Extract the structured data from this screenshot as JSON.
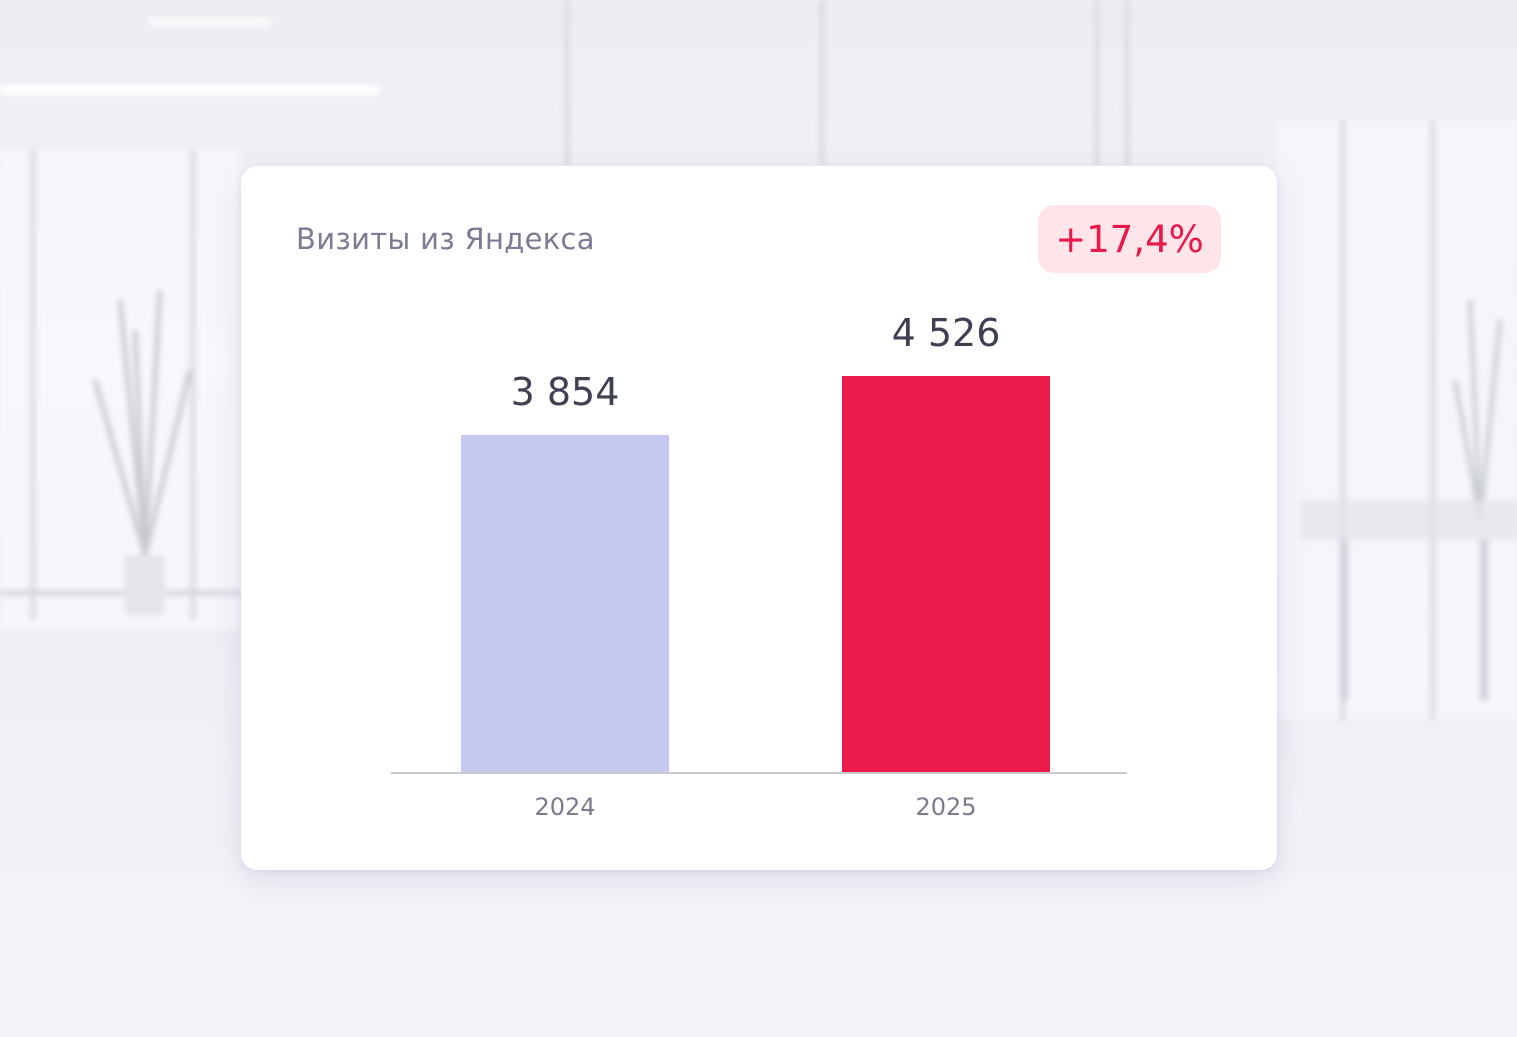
{
  "card": {
    "title": "Визиты из Яндекса",
    "change_badge": "+17,4%"
  },
  "colors": {
    "bar_2024": "#c5c7ee",
    "bar_2025": "#ec1b4b",
    "badge_bg": "#fde5ea",
    "badge_text": "#e8194a",
    "value_text": "#3f4052",
    "axis_text": "#7b7c8c",
    "axis_line": "#c8c9d2"
  },
  "chart_data": {
    "type": "bar",
    "title": "Визиты из Яндекса",
    "categories": [
      "2024",
      "2025"
    ],
    "values": [
      3854,
      4526
    ],
    "value_labels": [
      "3 854",
      "4 526"
    ],
    "ylim": [
      0,
      4526
    ],
    "grid": false,
    "legend": "none"
  }
}
